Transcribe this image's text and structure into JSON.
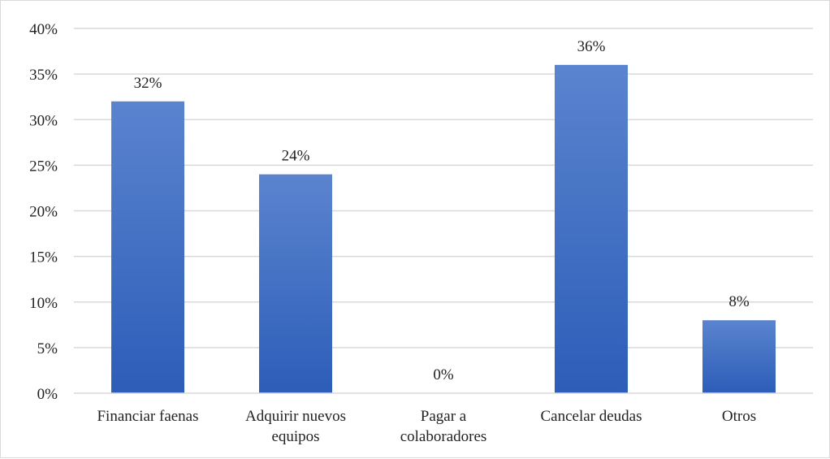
{
  "chart_data": {
    "type": "bar",
    "categories": [
      [
        "Financiar faenas"
      ],
      [
        "Adquirir nuevos",
        "equipos"
      ],
      [
        "Pagar a",
        "colaboradores"
      ],
      [
        "Cancelar deudas"
      ],
      [
        "Otros"
      ]
    ],
    "values": [
      32,
      24,
      0,
      36,
      8
    ],
    "data_labels": [
      "32%",
      "24%",
      "0%",
      "36%",
      "8%"
    ],
    "ylim": [
      0,
      40
    ],
    "yticks": [
      0,
      5,
      10,
      15,
      20,
      25,
      30,
      35,
      40
    ],
    "ytick_labels": [
      "0%",
      "5%",
      "10%",
      "15%",
      "20%",
      "25%",
      "30%",
      "35%",
      "40%"
    ],
    "title": "",
    "xlabel": "",
    "ylabel": "",
    "grid": true,
    "legend": "none",
    "colors": {
      "bar_top": "#5b84cf",
      "bar_bottom": "#2c5db8",
      "grid": "#d9d9d9",
      "axis": "#d9d9d9",
      "text": "#222222"
    }
  }
}
